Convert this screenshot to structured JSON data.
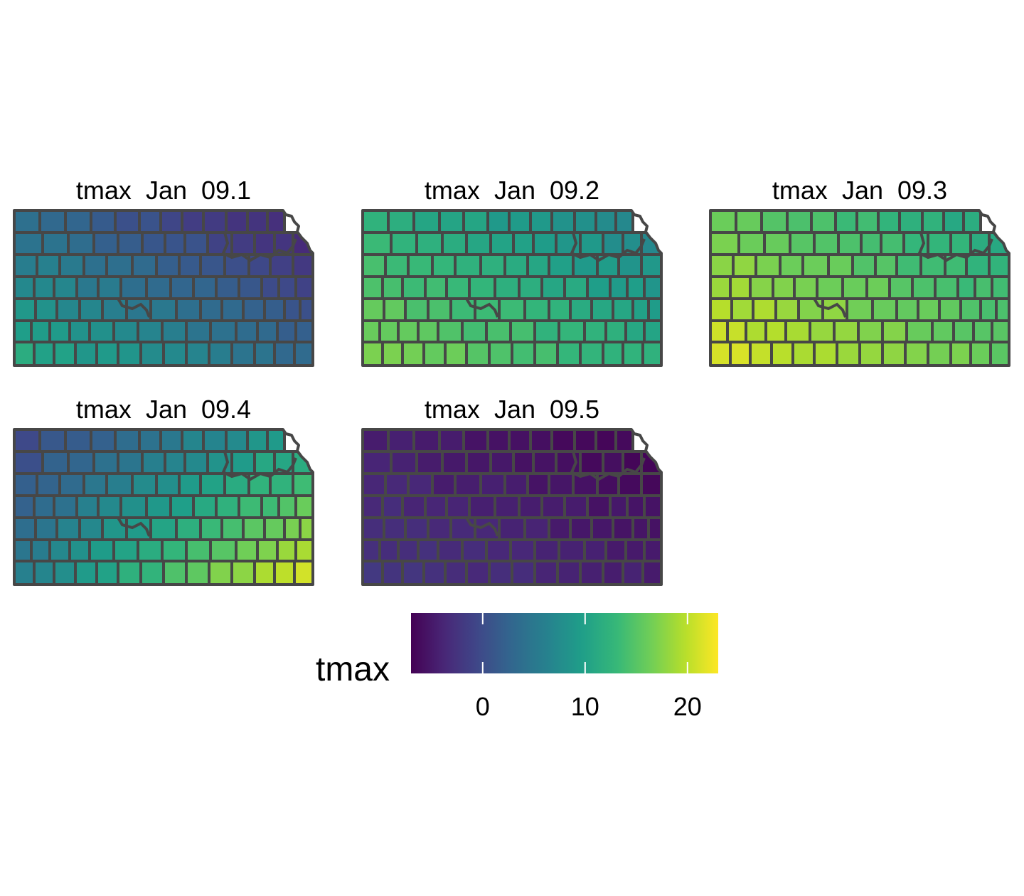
{
  "map": {
    "variable": "tmax",
    "region": "Kansas counties",
    "border_color": "#474747",
    "colormap": "viridis",
    "colormap_stops": [
      "#440154",
      "#482878",
      "#3e4989",
      "#31688e",
      "#26828e",
      "#1f9e89",
      "#35b779",
      "#6ece58",
      "#b5de2b",
      "#fde725"
    ],
    "value_range": [
      -7,
      23
    ],
    "panels": [
      {
        "title": "tmax  Jan  09.1",
        "ne_value": -5,
        "sw_value": 12,
        "noise": 0.6
      },
      {
        "title": "tmax  Jan  09.2",
        "ne_value": 6,
        "sw_value": 18,
        "noise": 0.6
      },
      {
        "title": "tmax  Jan  09.3",
        "ne_value": 10,
        "sw_value": 22,
        "noise": 0.6
      },
      {
        "title": "tmax  Jan  09.4",
        "ne_value": 10,
        "sw_value": 6,
        "se_value": 23,
        "nw_value": -1,
        "noise": 0.6
      },
      {
        "title": "tmax  Jan  09.5",
        "ne_value": -7,
        "sw_value": -2,
        "noise": 0.4
      }
    ]
  },
  "legend": {
    "title": "tmax",
    "min": -7,
    "max": 23,
    "ticks": [
      {
        "value": 0,
        "label": "0"
      },
      {
        "value": 10,
        "label": "10"
      },
      {
        "value": 20,
        "label": "20"
      }
    ]
  }
}
